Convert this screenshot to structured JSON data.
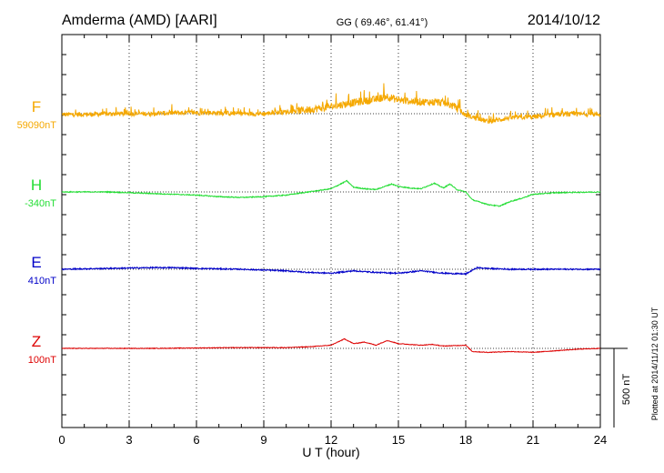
{
  "chart_data": {
    "type": "line",
    "title_left": "Amderma (AMD)  [AARI]",
    "title_center": "GG ( 69.46°,  61.41°)",
    "title_right": "2014/10/12",
    "xlabel": "U T (hour)",
    "xlim": [
      0,
      24
    ],
    "xticks": [
      0,
      3,
      6,
      9,
      12,
      15,
      18,
      21,
      24
    ],
    "scale_bar_label": "500 nT",
    "scale_bar_nT": 500,
    "side_note": "Plotted at 2014/11/12 01:30 UT",
    "grid": "dotted",
    "series": [
      {
        "name": "F",
        "baseline_label": "59090nT",
        "color": "#f5a800",
        "points": [
          [
            0,
            -5
          ],
          [
            1,
            -5
          ],
          [
            2,
            -2
          ],
          [
            3,
            0
          ],
          [
            4,
            0
          ],
          [
            5,
            5
          ],
          [
            6,
            5
          ],
          [
            7,
            5
          ],
          [
            8,
            0
          ],
          [
            9,
            0
          ],
          [
            10,
            12
          ],
          [
            11,
            25
          ],
          [
            12,
            45
          ],
          [
            13,
            70
          ],
          [
            14,
            90
          ],
          [
            14.5,
            110
          ],
          [
            15,
            85
          ],
          [
            16,
            75
          ],
          [
            17,
            70
          ],
          [
            17.5,
            45
          ],
          [
            18,
            -10
          ],
          [
            19,
            -50
          ],
          [
            20,
            -25
          ],
          [
            21,
            -20
          ],
          [
            22,
            -5
          ],
          [
            23,
            -3
          ],
          [
            24,
            -3
          ]
        ],
        "noise": 30
      },
      {
        "name": "H",
        "baseline_label": "-340nT",
        "color": "#22dd33",
        "points": [
          [
            0,
            0
          ],
          [
            2,
            0
          ],
          [
            4,
            -10
          ],
          [
            6,
            -20
          ],
          [
            7,
            -30
          ],
          [
            8,
            -35
          ],
          [
            9,
            -30
          ],
          [
            10,
            -20
          ],
          [
            11,
            0
          ],
          [
            12,
            20
          ],
          [
            12.7,
            70
          ],
          [
            13,
            30
          ],
          [
            13.5,
            20
          ],
          [
            14,
            15
          ],
          [
            14.7,
            50
          ],
          [
            15,
            35
          ],
          [
            15.5,
            25
          ],
          [
            16,
            20
          ],
          [
            16.6,
            55
          ],
          [
            17,
            25
          ],
          [
            17.3,
            50
          ],
          [
            17.6,
            15
          ],
          [
            18,
            0
          ],
          [
            18.3,
            -50
          ],
          [
            19,
            -80
          ],
          [
            19.5,
            -90
          ],
          [
            20,
            -60
          ],
          [
            20.5,
            -40
          ],
          [
            21,
            -15
          ],
          [
            22,
            -5
          ],
          [
            24,
            0
          ]
        ],
        "noise": 6
      },
      {
        "name": "E",
        "baseline_label": "410nT",
        "color": "#0000c8",
        "points": [
          [
            0,
            0
          ],
          [
            2,
            5
          ],
          [
            4,
            10
          ],
          [
            5,
            10
          ],
          [
            6,
            5
          ],
          [
            8,
            0
          ],
          [
            9,
            -5
          ],
          [
            10,
            -10
          ],
          [
            11,
            -20
          ],
          [
            12,
            -25
          ],
          [
            13,
            -10
          ],
          [
            14,
            -20
          ],
          [
            15,
            -25
          ],
          [
            16,
            -10
          ],
          [
            17,
            -25
          ],
          [
            18,
            -30
          ],
          [
            18.5,
            10
          ],
          [
            19,
            5
          ],
          [
            20,
            0
          ],
          [
            22,
            0
          ],
          [
            24,
            0
          ]
        ],
        "noise": 8
      },
      {
        "name": "Z",
        "baseline_label": "100nT",
        "color": "#dd0000",
        "points": [
          [
            0,
            0
          ],
          [
            4,
            0
          ],
          [
            8,
            5
          ],
          [
            10,
            5
          ],
          [
            11,
            10
          ],
          [
            12,
            20
          ],
          [
            12.6,
            60
          ],
          [
            13,
            30
          ],
          [
            13.5,
            40
          ],
          [
            14,
            20
          ],
          [
            14.5,
            50
          ],
          [
            15,
            30
          ],
          [
            16,
            20
          ],
          [
            16.5,
            25
          ],
          [
            17,
            15
          ],
          [
            18,
            20
          ],
          [
            18.3,
            -20
          ],
          [
            19,
            -25
          ],
          [
            20,
            -20
          ],
          [
            21,
            -25
          ],
          [
            22,
            -15
          ],
          [
            23,
            -5
          ],
          [
            24,
            0
          ]
        ],
        "noise": 4
      }
    ]
  }
}
